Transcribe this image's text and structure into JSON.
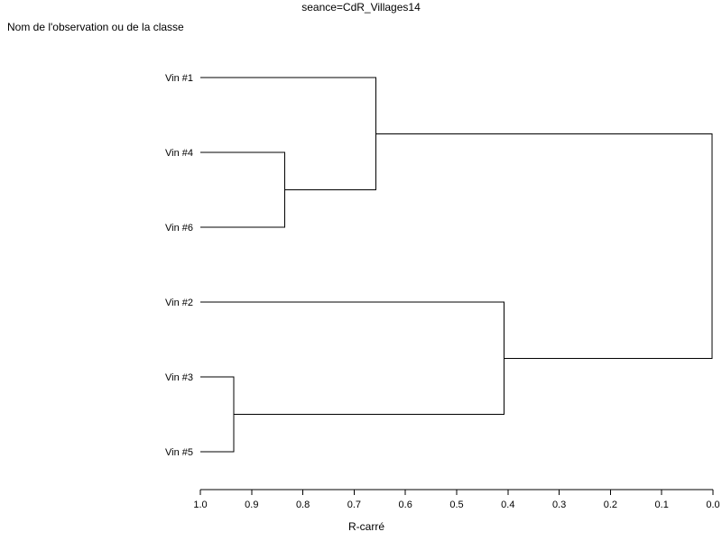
{
  "chart_data": {
    "type": "dendrogram",
    "title": "seance=CdR_Villages14",
    "ylabel": "Nom de l'observation ou de la classe",
    "xlabel": "R-carré",
    "xlim": [
      1.0,
      0.0
    ],
    "xticks": [
      "1.0",
      "0.9",
      "0.8",
      "0.7",
      "0.6",
      "0.5",
      "0.4",
      "0.3",
      "0.2",
      "0.1",
      "0.0"
    ],
    "leaves": [
      "Vin #1",
      "Vin #4",
      "Vin #6",
      "Vin #2",
      "Vin #3",
      "Vin #5"
    ],
    "merges": [
      {
        "a": "Vin #3",
        "b": "Vin #5",
        "height": 0.935
      },
      {
        "a": "Vin #4",
        "b": "Vin #6",
        "height": 0.835
      },
      {
        "a": "Vin #1",
        "b": "Vin #4+Vin #6",
        "height": 0.658
      },
      {
        "a": "Vin #2",
        "b": "Vin #3+Vin #5",
        "height": 0.408
      },
      {
        "a": "Vin #1+Vin #4+Vin #6",
        "b": "Vin #2+Vin #3+Vin #5",
        "height": 0.002
      }
    ],
    "grid": false,
    "legend": "none"
  }
}
